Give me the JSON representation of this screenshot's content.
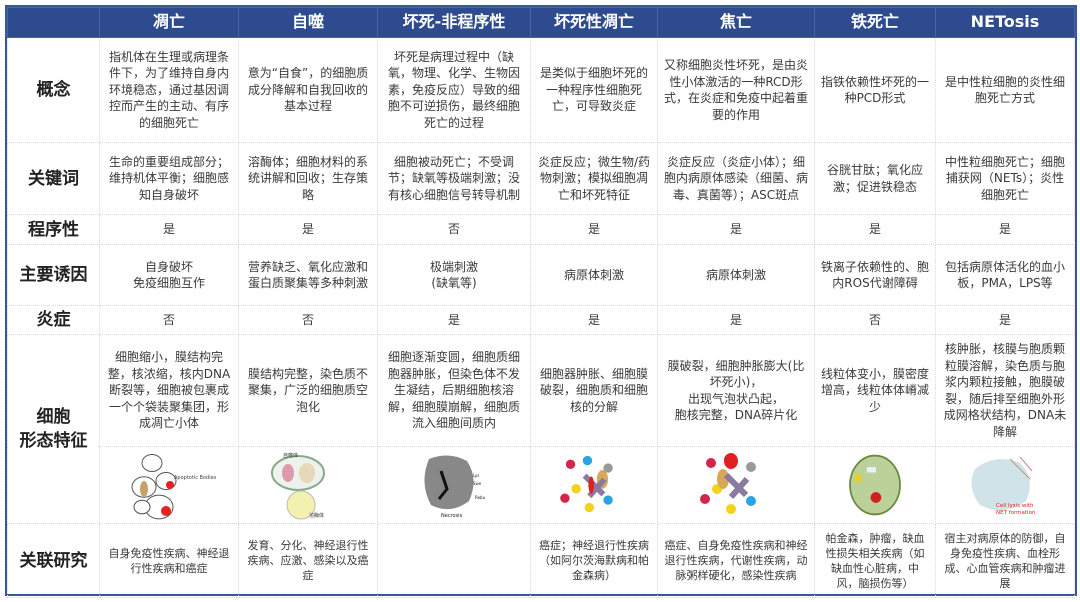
{
  "columns": [
    "",
    "凋亡",
    "自噬",
    "坏死-非程序性",
    "坏死性凋亡",
    "焦亡",
    "铁死亡",
    "NETosis"
  ],
  "rows": [
    {
      "label": "概念",
      "cells": [
        "指机体在生理或病理条件下，为了维持自身内环境稳态，通过基因调控而产生的主动、有序的细胞死亡",
        "意为“自食”，的细胞质成分降解和自我回收的基本过程",
        "坏死是病理过程中（缺氧，物理、化学、生物因素，免疫反应）导致的细胞不可逆损伤，最终细胞死亡的过程",
        "是类似于细胞坏死的一种程序性细胞死亡，可导致炎症",
        "又称细胞炎性坏死，是由炎性小体激活的一种RCD形式，在炎症和免疫中起着重要的作用",
        "指铁依赖性坏死的一种PCD形式",
        "是中性粒细胞的炎性细胞死亡方式"
      ]
    },
    {
      "label": "关键词",
      "cells": [
        "生命的重要组成部分；维持机体平衡；细胞感知自身破坏",
        "溶酶体；细胞材料的系统讲解和回收；生存策略",
        "细胞被动死亡；不受调节；缺氧等极端刺激；没有核心细胞信号转导机制",
        "炎症反应；微生物/药物刺激；模拟细胞凋亡和坏死特征",
        "炎症反应（炎症小体）；细胞内病原体感染（细菌、病毒、真菌等）；ASC斑点",
        "谷胱甘肽；氧化应激；促进铁稳态",
        "中性粒细胞死亡；细胞捕获网（NETs）；炎性细胞死亡"
      ]
    },
    {
      "label": "程序性",
      "cells": [
        "是",
        "是",
        "否",
        "是",
        "是",
        "是",
        "是"
      ]
    },
    {
      "label": "主要诱因",
      "cells": [
        "自身破坏\n免疫细胞互作",
        "营养缺乏、氧化应激和蛋白质聚集等多种刺激",
        "极端刺激\n(缺氧等)",
        "病原体刺激",
        "病原体刺激",
        "铁离子依赖性的、胞内ROS代谢障碍",
        "包括病原体活化的血小板，PMA，LPS等"
      ]
    },
    {
      "label": "炎症",
      "cells": [
        "否",
        "否",
        "是",
        "是",
        "是",
        "否",
        "是"
      ]
    },
    {
      "label": "细胞\n形态特征",
      "cells": [
        "细胞缩小，膜结构完整，核浓缩，核内DNA断裂等，细胞被包裹成一个个袋装聚集团，形成凋亡小体",
        "膜结构完整，染色质不聚集，广泛的细胞质空泡化",
        "细胞逐渐变圆，细胞质细胞器肿胀，但染色体不发生凝结，后期细胞核溶解，细胞膜崩解，细胞质流入细胞间质内",
        "细胞器肿胀、细胞膜破裂，细胞质和细胞核的分解",
        "膜破裂，细胞肿胀膨大(比坏死小)，\n出现气泡状凸起，\n胞核完整，DNA碎片化",
        "线粒体变小，膜密度增高，线粒体体嵴减少",
        "核肿胀，核膜与胞质颗粒膜溶解，染色质与胞浆内颗粒接触，胞膜破裂，随后排至细胞外形成网格状结构，DNA未降解"
      ]
    },
    {
      "label": "关联研究",
      "cells": [
        "自身免疫性疾病、神经退行性疾病和癌症",
        "发育、分化、神经退行性疾病、应激、感染以及癌症",
        "",
        "癌症；神经退行性疾病（如阿尔茨海默病和帕金森病）",
        "癌症、自身免疫性疾病和神经退行性疾病，代谢性疾病，动脉粥样硬化，感染性疾病",
        "帕金森，肿瘤，缺血性损失相关疾病（如缺血性心脏病，中风，脑损伤等）",
        "宿主对病原体的防御，自身免疫性疾病、血栓形成、心血管疾病和肿瘤进展"
      ]
    }
  ],
  "illustrations": [
    {
      "icon": "apoptosis-illustration",
      "labels": [
        "Apoptotic Bodies"
      ]
    },
    {
      "icon": "autophagy-illustration",
      "labels": [
        "自噬体",
        "溶酶体"
      ]
    },
    {
      "icon": "necrosis-illustration",
      "labels": [
        "Necrosis",
        "Lys",
        "Swe",
        "Rebu"
      ]
    },
    {
      "icon": "necroptosis-illustration",
      "labels": []
    },
    {
      "icon": "pyroptosis-illustration",
      "labels": []
    },
    {
      "icon": "ferroptosis-illustration",
      "labels": []
    },
    {
      "icon": "netosis-illustration",
      "labels": [
        "Cell lysis with",
        "NET formation"
      ]
    }
  ],
  "colors": {
    "header_bg": "#2e4b8f",
    "header_text": "#ffffff",
    "border": "#3a5598"
  }
}
